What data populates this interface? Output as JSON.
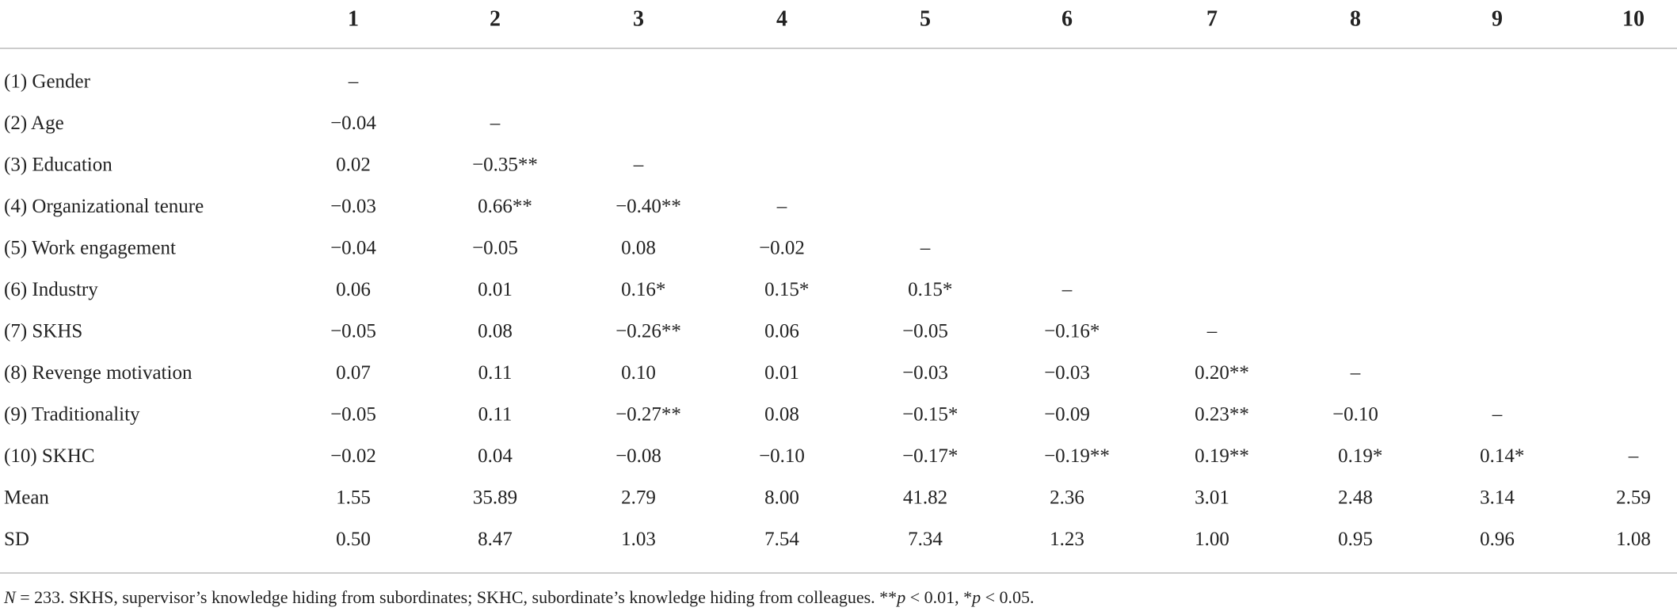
{
  "table": {
    "columns": [
      "1",
      "2",
      "3",
      "4",
      "5",
      "6",
      "7",
      "8",
      "9",
      "10"
    ],
    "rows": [
      {
        "label": "(1) Gender",
        "cells": [
          "–"
        ]
      },
      {
        "label": "(2) Age",
        "cells": [
          "−0.04",
          "–"
        ]
      },
      {
        "label": "(3) Education",
        "cells": [
          "0.02",
          "−0.35**",
          "–"
        ]
      },
      {
        "label": "(4) Organizational tenure",
        "cells": [
          "−0.03",
          "0.66**",
          "−0.40**",
          "–"
        ]
      },
      {
        "label": "(5) Work engagement",
        "cells": [
          "−0.04",
          "−0.05",
          "0.08",
          "−0.02",
          "–"
        ]
      },
      {
        "label": "(6) Industry",
        "cells": [
          "0.06",
          "0.01",
          "0.16*",
          "0.15*",
          "0.15*",
          "–"
        ]
      },
      {
        "label": "(7) SKHS",
        "cells": [
          "−0.05",
          "0.08",
          "−0.26**",
          "0.06",
          "−0.05",
          "−0.16*",
          "–"
        ]
      },
      {
        "label": "(8) Revenge motivation",
        "cells": [
          "0.07",
          "0.11",
          "0.10",
          "0.01",
          "−0.03",
          "−0.03",
          "0.20**",
          "–"
        ]
      },
      {
        "label": "(9) Traditionality",
        "cells": [
          "−0.05",
          "0.11",
          "−0.27**",
          "0.08",
          "−0.15*",
          "−0.09",
          "0.23**",
          "−0.10",
          "–"
        ]
      },
      {
        "label": "(10) SKHC",
        "cells": [
          "−0.02",
          "0.04",
          "−0.08",
          "−0.10",
          "−0.17*",
          "−0.19**",
          "0.19**",
          "0.19*",
          "0.14*",
          "–"
        ]
      },
      {
        "label": "Mean",
        "cells": [
          "1.55",
          "35.89",
          "2.79",
          "8.00",
          "41.82",
          "2.36",
          "3.01",
          "2.48",
          "3.14",
          "2.59"
        ]
      },
      {
        "label": "SD",
        "cells": [
          "0.50",
          "8.47",
          "1.03",
          "7.54",
          "7.34",
          "1.23",
          "1.00",
          "0.95",
          "0.96",
          "1.08"
        ]
      }
    ]
  },
  "note": [
    "N",
    " = 233. SKHS, supervisor’s knowledge hiding from subordinates; SKHC, subordinate’s knowledge hiding from colleagues. **",
    "p",
    " < 0.01, *",
    "p",
    " < 0.05."
  ]
}
